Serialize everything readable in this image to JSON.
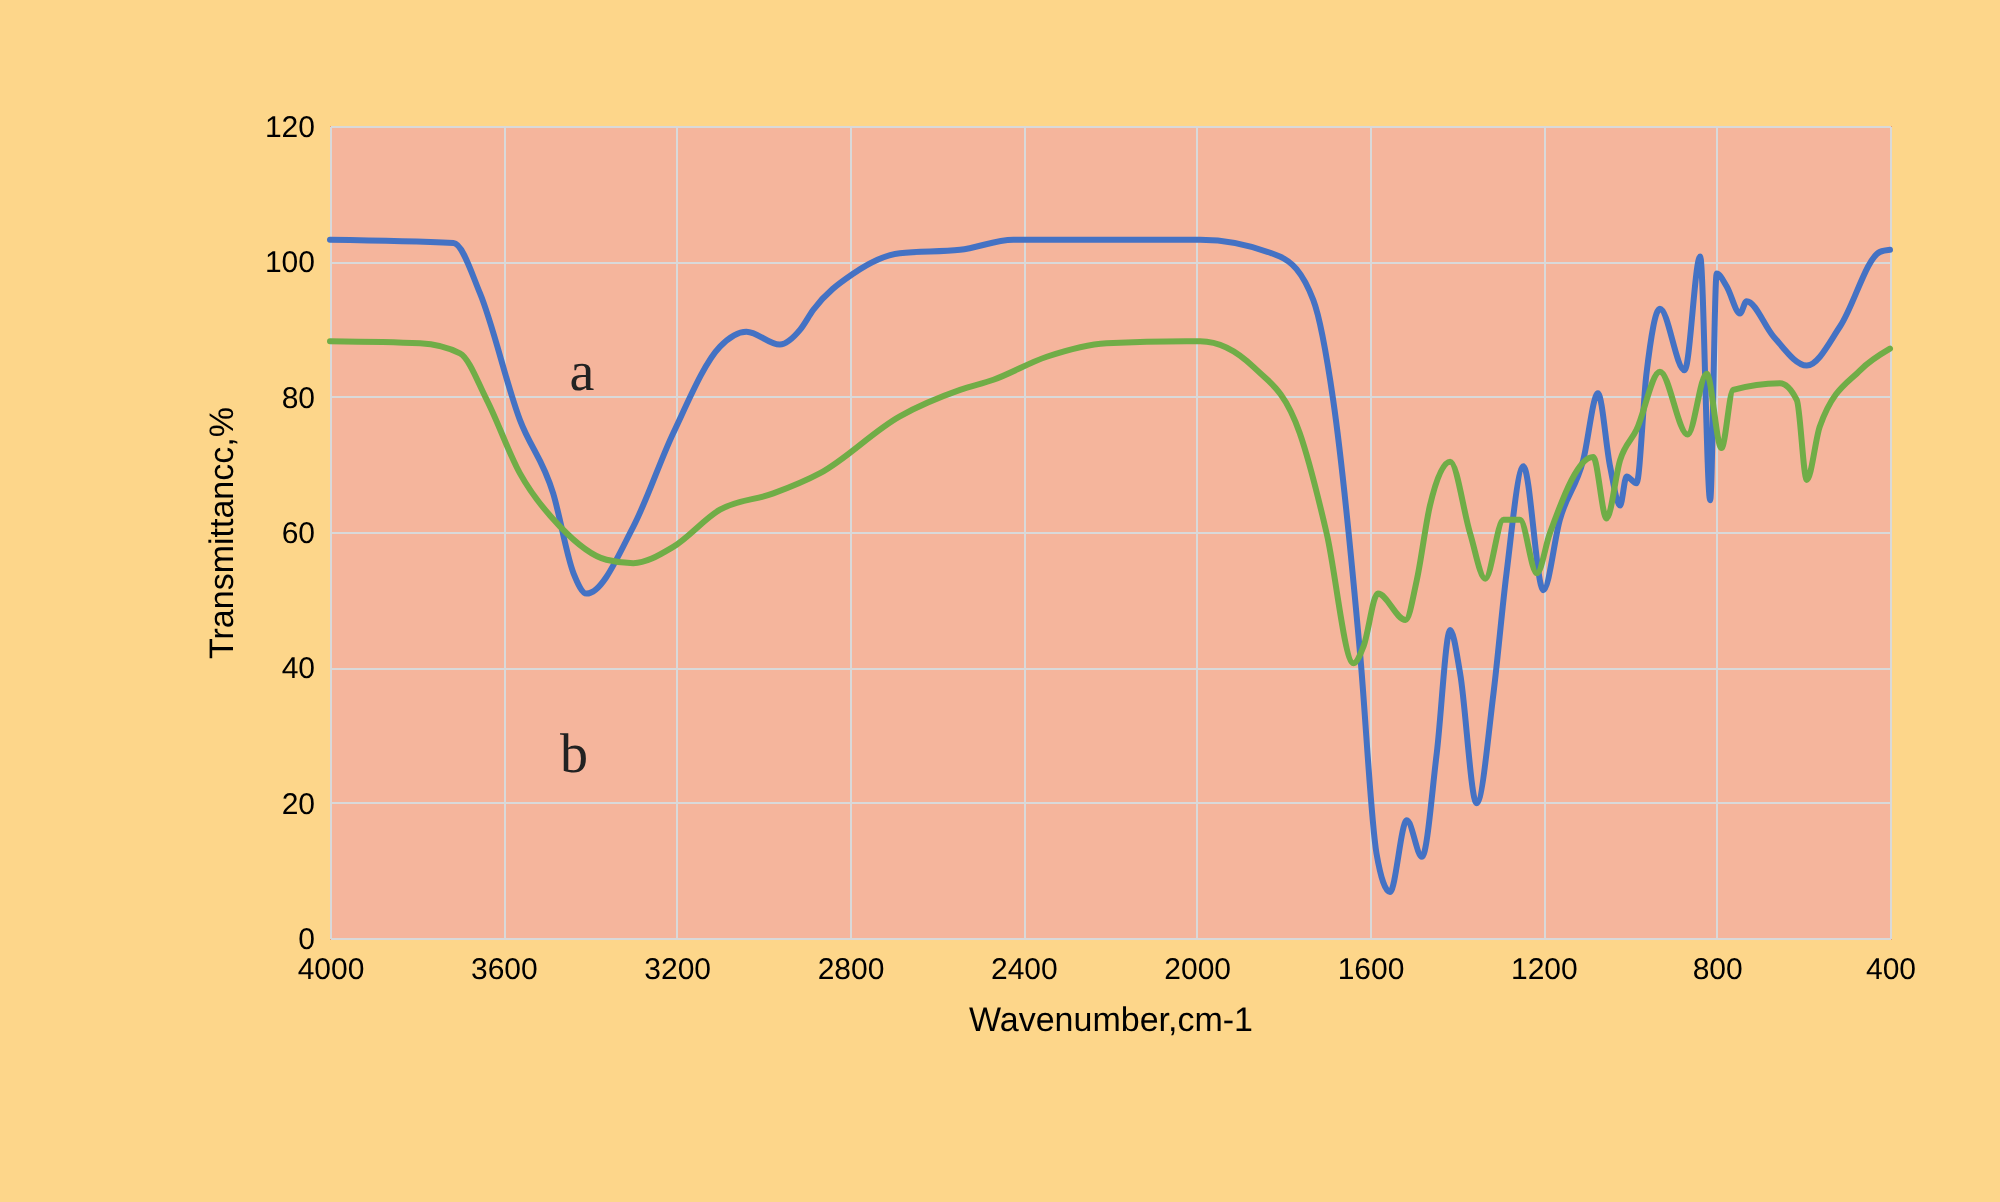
{
  "chart_data": {
    "type": "line",
    "xlabel": "Wavenumber,cm-1",
    "ylabel": "Transmittancc,%",
    "xlim": [
      4000,
      400
    ],
    "xticks": [
      4000,
      3600,
      3200,
      2800,
      2400,
      2000,
      1600,
      1200,
      800,
      400
    ],
    "ylim": [
      0,
      120
    ],
    "yticks": [
      0,
      20,
      40,
      60,
      80,
      100,
      120
    ],
    "grid": true,
    "marker": "none",
    "line_style": "solid",
    "annotations": [
      "a",
      "b"
    ],
    "series": [
      {
        "color": "#4472c4",
        "x": [
          4000,
          3715,
          3654,
          3562,
          3485,
          3438,
          3408,
          3300,
          3208,
          3100,
          3039,
          2962,
          2915,
          2885,
          2792,
          2685,
          2546,
          2423,
          2023,
          1992,
          1808,
          1731,
          1685,
          1623,
          1585,
          1554,
          1515,
          1480,
          1446,
          1415,
          1392,
          1354,
          1315,
          1285,
          1246,
          1200,
          1162,
          1108,
          1074,
          1046,
          1023,
          1008,
          985,
          962,
          931,
          874,
          838,
          815,
          800,
          777,
          746,
          731,
          669,
          592,
          515,
          423,
          400
        ],
        "values": [
          103.2,
          102.7,
          95.3,
          76.6,
          65.7,
          53.9,
          50.9,
          60.8,
          74.6,
          87.4,
          89.6,
          87.7,
          89.9,
          92.8,
          98.2,
          101.2,
          101.7,
          103.2,
          103.2,
          103.2,
          100.7,
          94.3,
          79.5,
          42.1,
          12.5,
          6.8,
          17.4,
          12.0,
          27.3,
          45.5,
          39.1,
          19.9,
          36.2,
          53.9,
          69.7,
          51.4,
          61.8,
          70.6,
          80.5,
          69.7,
          63.9,
          68.2,
          67.2,
          83.4,
          93.0,
          83.9,
          100.7,
          64.7,
          98.2,
          96.3,
          92.3,
          94.1,
          88.9,
          84.6,
          90.4,
          101.4,
          101.7
        ]
      },
      {
        "color": "#70ad47",
        "x": [
          4000,
          3792,
          3700,
          3638,
          3562,
          3469,
          3362,
          3300,
          3208,
          3100,
          2977,
          2869,
          2685,
          2546,
          2469,
          2346,
          2208,
          2023,
          1992,
          1869,
          1762,
          1700,
          1638,
          1615,
          1582,
          1518,
          1492,
          1462,
          1415,
          1369,
          1334,
          1292,
          1254,
          1215,
          1185,
          1085,
          1054,
          1023,
          985,
          931,
          867,
          823,
          789,
          762,
          654,
          615,
          592,
          562,
          469,
          400
        ],
        "values": [
          88.2,
          87.9,
          86.4,
          79.5,
          68.7,
          60.8,
          55.9,
          55.4,
          57.8,
          63.3,
          65.7,
          68.7,
          77.1,
          81.0,
          82.5,
          85.9,
          87.9,
          88.2,
          88.2,
          84.4,
          74.6,
          59.8,
          40.6,
          43.1,
          50.9,
          47.0,
          52.9,
          63.8,
          70.4,
          59.8,
          53.1,
          61.8,
          61.8,
          53.9,
          59.8,
          71.1,
          62.0,
          70.6,
          75.1,
          83.7,
          74.4,
          83.4,
          72.4,
          81.0,
          82.0,
          79.5,
          67.7,
          75.6,
          83.9,
          87.1
        ]
      }
    ]
  }
}
